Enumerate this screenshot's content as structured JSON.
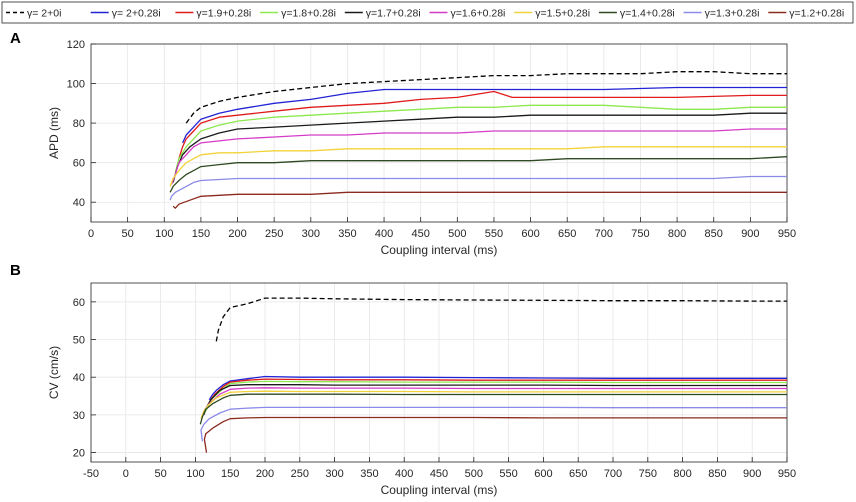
{
  "legend": [
    {
      "label": "γ=  2+0i",
      "color": "#000000",
      "dashed": true
    },
    {
      "label": "γ=  2+0.28i",
      "color": "#2323d6",
      "dashed": false
    },
    {
      "label": "γ=1.9+0.28i",
      "color": "#e01b1b",
      "dashed": false
    },
    {
      "label": "γ=1.8+0.28i",
      "color": "#8ce84c",
      "dashed": false
    },
    {
      "label": "γ=1.7+0.28i",
      "color": "#1a1a1a",
      "dashed": false
    },
    {
      "label": "γ=1.6+0.28i",
      "color": "#d43cc8",
      "dashed": false
    },
    {
      "label": "γ=1.5+0.28i",
      "color": "#f2d23a",
      "dashed": false
    },
    {
      "label": "γ=1.4+0.28i",
      "color": "#2f4a22",
      "dashed": false
    },
    {
      "label": "γ=1.3+0.28i",
      "color": "#8a8ae8",
      "dashed": false
    },
    {
      "label": "γ=1.2+0.28i",
      "color": "#8b2a1e",
      "dashed": false
    }
  ],
  "chart_data": [
    {
      "panel": "A",
      "type": "line",
      "xlabel": "Coupling interval (ms)",
      "ylabel": "APD (ms)",
      "xlim": [
        0,
        950
      ],
      "ylim": [
        30,
        120
      ],
      "xticks": [
        0,
        50,
        100,
        150,
        200,
        250,
        300,
        350,
        400,
        450,
        500,
        550,
        600,
        650,
        700,
        750,
        800,
        850,
        900,
        950
      ],
      "yticks": [
        40,
        60,
        80,
        100,
        120
      ],
      "grid": true,
      "series": [
        {
          "name": "γ=  2+0i",
          "x": [
            130,
            140,
            150,
            175,
            200,
            250,
            300,
            350,
            400,
            450,
            500,
            550,
            600,
            650,
            700,
            750,
            800,
            850,
            900,
            950
          ],
          "y": [
            80,
            85,
            88,
            91,
            93,
            96,
            98,
            100,
            101,
            102,
            103,
            104,
            104,
            105,
            105,
            105,
            106,
            106,
            105,
            105
          ]
        },
        {
          "name": "γ=  2+0.28i",
          "x": [
            125,
            130,
            140,
            150,
            175,
            200,
            250,
            300,
            350,
            400,
            450,
            500,
            550,
            600,
            700,
            800,
            900,
            950
          ],
          "y": [
            70,
            74,
            78,
            82,
            85,
            87,
            90,
            92,
            95,
            97,
            97,
            97,
            97,
            97,
            97,
            98,
            98,
            98
          ]
        },
        {
          "name": "γ=1.9+0.28i",
          "x": [
            120,
            125,
            130,
            140,
            150,
            175,
            200,
            250,
            300,
            350,
            400,
            450,
            500,
            550,
            575,
            600,
            700,
            800,
            900,
            950
          ],
          "y": [
            62,
            68,
            72,
            76,
            80,
            83,
            84,
            86,
            88,
            89,
            90,
            92,
            93,
            96,
            93,
            93,
            93,
            93,
            94,
            94
          ]
        },
        {
          "name": "γ=1.8+0.28i",
          "x": [
            115,
            120,
            130,
            140,
            150,
            175,
            200,
            250,
            300,
            350,
            400,
            450,
            500,
            550,
            600,
            650,
            700,
            750,
            800,
            850,
            900,
            950
          ],
          "y": [
            55,
            62,
            68,
            72,
            76,
            79,
            81,
            83,
            84,
            85,
            86,
            87,
            88,
            88,
            89,
            89,
            89,
            88,
            87,
            87,
            88,
            88
          ]
        },
        {
          "name": "γ=1.7+0.28i",
          "x": [
            112,
            118,
            125,
            135,
            150,
            175,
            200,
            250,
            300,
            350,
            400,
            450,
            500,
            550,
            600,
            650,
            700,
            750,
            800,
            850,
            900,
            950
          ],
          "y": [
            50,
            58,
            64,
            68,
            72,
            75,
            77,
            78,
            79,
            80,
            81,
            82,
            83,
            83,
            84,
            84,
            84,
            84,
            84,
            84,
            85,
            85
          ]
        },
        {
          "name": "γ=1.6+0.28i",
          "x": [
            110,
            115,
            120,
            130,
            140,
            150,
            175,
            200,
            250,
            300,
            350,
            400,
            450,
            500,
            550,
            600,
            650,
            700,
            750,
            800,
            850,
            900,
            950
          ],
          "y": [
            49,
            54,
            60,
            64,
            68,
            70,
            71,
            72,
            73,
            74,
            74,
            75,
            75,
            75,
            76,
            76,
            76,
            76,
            76,
            76,
            76,
            77,
            77
          ]
        },
        {
          "name": "γ=1.5+0.28i",
          "x": [
            108,
            112,
            120,
            130,
            140,
            150,
            175,
            200,
            250,
            300,
            350,
            400,
            450,
            500,
            550,
            600,
            650,
            700,
            750,
            800,
            850,
            900,
            950
          ],
          "y": [
            48,
            52,
            56,
            60,
            62,
            64,
            65,
            65,
            66,
            66,
            67,
            67,
            67,
            67,
            67,
            67,
            67,
            68,
            68,
            68,
            68,
            68,
            68
          ]
        },
        {
          "name": "γ=1.4+0.28i",
          "x": [
            108,
            112,
            120,
            130,
            140,
            150,
            175,
            200,
            250,
            300,
            350,
            400,
            450,
            500,
            550,
            600,
            650,
            700,
            750,
            800,
            850,
            900,
            950
          ],
          "y": [
            45,
            48,
            51,
            54,
            56,
            58,
            59,
            60,
            60,
            61,
            61,
            61,
            61,
            61,
            61,
            61,
            62,
            62,
            62,
            62,
            62,
            62,
            63
          ]
        },
        {
          "name": "γ=1.3+0.28i",
          "x": [
            108,
            110,
            115,
            125,
            140,
            150,
            175,
            200,
            250,
            300,
            350,
            400,
            450,
            500,
            550,
            600,
            650,
            700,
            750,
            800,
            850,
            900,
            950
          ],
          "y": [
            41,
            43,
            45,
            47,
            50,
            51,
            51.5,
            52,
            52,
            52,
            52,
            52,
            52,
            52,
            52,
            52,
            52,
            52,
            52,
            52,
            52,
            53,
            53
          ]
        },
        {
          "name": "γ=1.2+0.28i",
          "x": [
            112,
            115,
            120,
            135,
            150,
            175,
            200,
            250,
            300,
            350,
            400,
            450,
            500,
            550,
            600,
            650,
            700,
            750,
            800,
            850,
            900,
            950
          ],
          "y": [
            38,
            37,
            39,
            41,
            43,
            43.5,
            44,
            44,
            44,
            45,
            45,
            45,
            45,
            45,
            45,
            45,
            45,
            45,
            45,
            45,
            45,
            45
          ]
        }
      ]
    },
    {
      "panel": "B",
      "type": "line",
      "xlabel": "Coupling interval (ms)",
      "ylabel": "CV (cm/s)",
      "xlim": [
        -50,
        950
      ],
      "ylim": [
        17.5,
        65
      ],
      "xticks": [
        -50,
        0,
        50,
        100,
        150,
        200,
        250,
        300,
        350,
        400,
        450,
        500,
        550,
        600,
        650,
        700,
        750,
        800,
        850,
        900,
        950
      ],
      "yticks": [
        20,
        30,
        40,
        50,
        60
      ],
      "grid": true,
      "series": [
        {
          "name": "γ=  2+0i",
          "x": [
            130,
            133,
            140,
            150,
            175,
            200,
            250,
            300,
            400,
            500,
            600,
            700,
            800,
            900,
            950
          ],
          "y": [
            49.5,
            52.5,
            56,
            58.5,
            59.5,
            61,
            61,
            60.8,
            60.6,
            60.5,
            60.4,
            60.3,
            60.3,
            60.2,
            60.2
          ]
        },
        {
          "name": "γ=  2+0.28i",
          "x": [
            120,
            125,
            130,
            140,
            150,
            175,
            200,
            250,
            300,
            400,
            500,
            600,
            700,
            800,
            900,
            950
          ],
          "y": [
            34,
            35.5,
            36.5,
            38,
            39,
            39.6,
            40.2,
            40,
            40,
            40,
            39.9,
            39.8,
            39.7,
            39.7,
            39.7,
            39.7
          ]
        },
        {
          "name": "γ=1.9+0.28i",
          "x": [
            118,
            122,
            128,
            140,
            150,
            175,
            200,
            250,
            300,
            400,
            500,
            600,
            700,
            800,
            900,
            950
          ],
          "y": [
            32.5,
            34,
            35.5,
            37.5,
            38.7,
            39.2,
            39.5,
            39.4,
            39.3,
            39.3,
            39.2,
            39.2,
            39.2,
            39.2,
            39.2,
            39.2
          ]
        },
        {
          "name": "γ=1.8+0.28i",
          "x": [
            115,
            120,
            125,
            140,
            150,
            175,
            200,
            250,
            300,
            400,
            500,
            600,
            700,
            800,
            900,
            950
          ],
          "y": [
            31,
            33,
            34.5,
            37,
            38.3,
            38.7,
            38.9,
            38.8,
            38.8,
            38.7,
            38.7,
            38.7,
            38.6,
            38.6,
            38.6,
            38.6
          ]
        },
        {
          "name": "γ=1.7+0.28i",
          "x": [
            112,
            116,
            122,
            135,
            150,
            175,
            200,
            250,
            300,
            400,
            500,
            600,
            700,
            800,
            900,
            950
          ],
          "y": [
            30,
            32,
            34,
            36.5,
            37.8,
            38,
            38,
            38,
            37.9,
            37.9,
            37.9,
            37.9,
            37.8,
            37.8,
            37.8,
            37.8
          ]
        },
        {
          "name": "γ=1.6+0.28i",
          "x": [
            110,
            114,
            120,
            135,
            150,
            175,
            200,
            250,
            300,
            400,
            500,
            600,
            700,
            800,
            900,
            950
          ],
          "y": [
            29.5,
            31.5,
            33,
            35.5,
            36.8,
            37.1,
            37.2,
            37.1,
            37.1,
            37.1,
            37,
            37,
            37,
            37,
            37,
            37
          ]
        },
        {
          "name": "γ=1.5+0.28i",
          "x": [
            108,
            112,
            118,
            130,
            150,
            175,
            200,
            250,
            300,
            400,
            500,
            600,
            700,
            800,
            900,
            950
          ],
          "y": [
            29,
            31,
            32.5,
            34.5,
            36,
            36.2,
            36.3,
            36.2,
            36.2,
            36.2,
            36.1,
            36.1,
            36.1,
            36.1,
            36.1,
            36.1
          ]
        },
        {
          "name": "γ=1.4+0.28i",
          "x": [
            107,
            110,
            115,
            125,
            140,
            150,
            175,
            200,
            250,
            300,
            400,
            500,
            600,
            700,
            800,
            900,
            950
          ],
          "y": [
            27.5,
            29.5,
            31.5,
            33,
            34.5,
            35.2,
            35.5,
            35.5,
            35.5,
            35.5,
            35.4,
            35.4,
            35.4,
            35.4,
            35.4,
            35.4,
            35.4
          ]
        },
        {
          "name": "γ=1.3+0.28i",
          "x": [
            110,
            108,
            112,
            120,
            135,
            150,
            175,
            200,
            250,
            300,
            400,
            500,
            600,
            700,
            800,
            900,
            950
          ],
          "y": [
            23,
            26,
            27.5,
            29,
            30.5,
            31.5,
            31.8,
            32,
            32,
            32,
            32,
            32,
            32,
            31.9,
            31.9,
            31.9,
            31.9
          ]
        },
        {
          "name": "γ=1.2+0.28i",
          "x": [
            116,
            113,
            115,
            125,
            140,
            150,
            175,
            200,
            250,
            300,
            400,
            500,
            600,
            700,
            800,
            900,
            950
          ],
          "y": [
            20,
            23.5,
            25,
            26.5,
            28.2,
            29,
            29.2,
            29.3,
            29.3,
            29.3,
            29.3,
            29.3,
            29.2,
            29.2,
            29.2,
            29.2,
            29.2
          ]
        }
      ]
    }
  ]
}
